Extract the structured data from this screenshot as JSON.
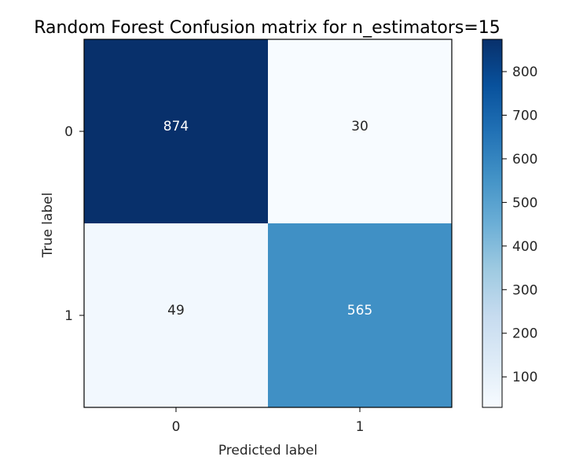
{
  "chart_data": {
    "type": "heatmap",
    "title": "Random Forest Confusion matrix for n_estimators=15",
    "xlabel": "Predicted label",
    "ylabel": "True label",
    "x_categories": [
      "0",
      "1"
    ],
    "y_categories": [
      "0",
      "1"
    ],
    "matrix": [
      [
        874,
        30
      ],
      [
        49,
        565
      ]
    ],
    "colormap": "Blues",
    "colorbar": {
      "ticks": [
        100,
        200,
        300,
        400,
        500,
        600,
        700,
        800
      ],
      "range": [
        30,
        874
      ]
    },
    "colors": {
      "dark": "#08306b",
      "light": "#f7fbff",
      "text_on_dark": "#ffffff",
      "text_on_light": "#262626"
    }
  }
}
